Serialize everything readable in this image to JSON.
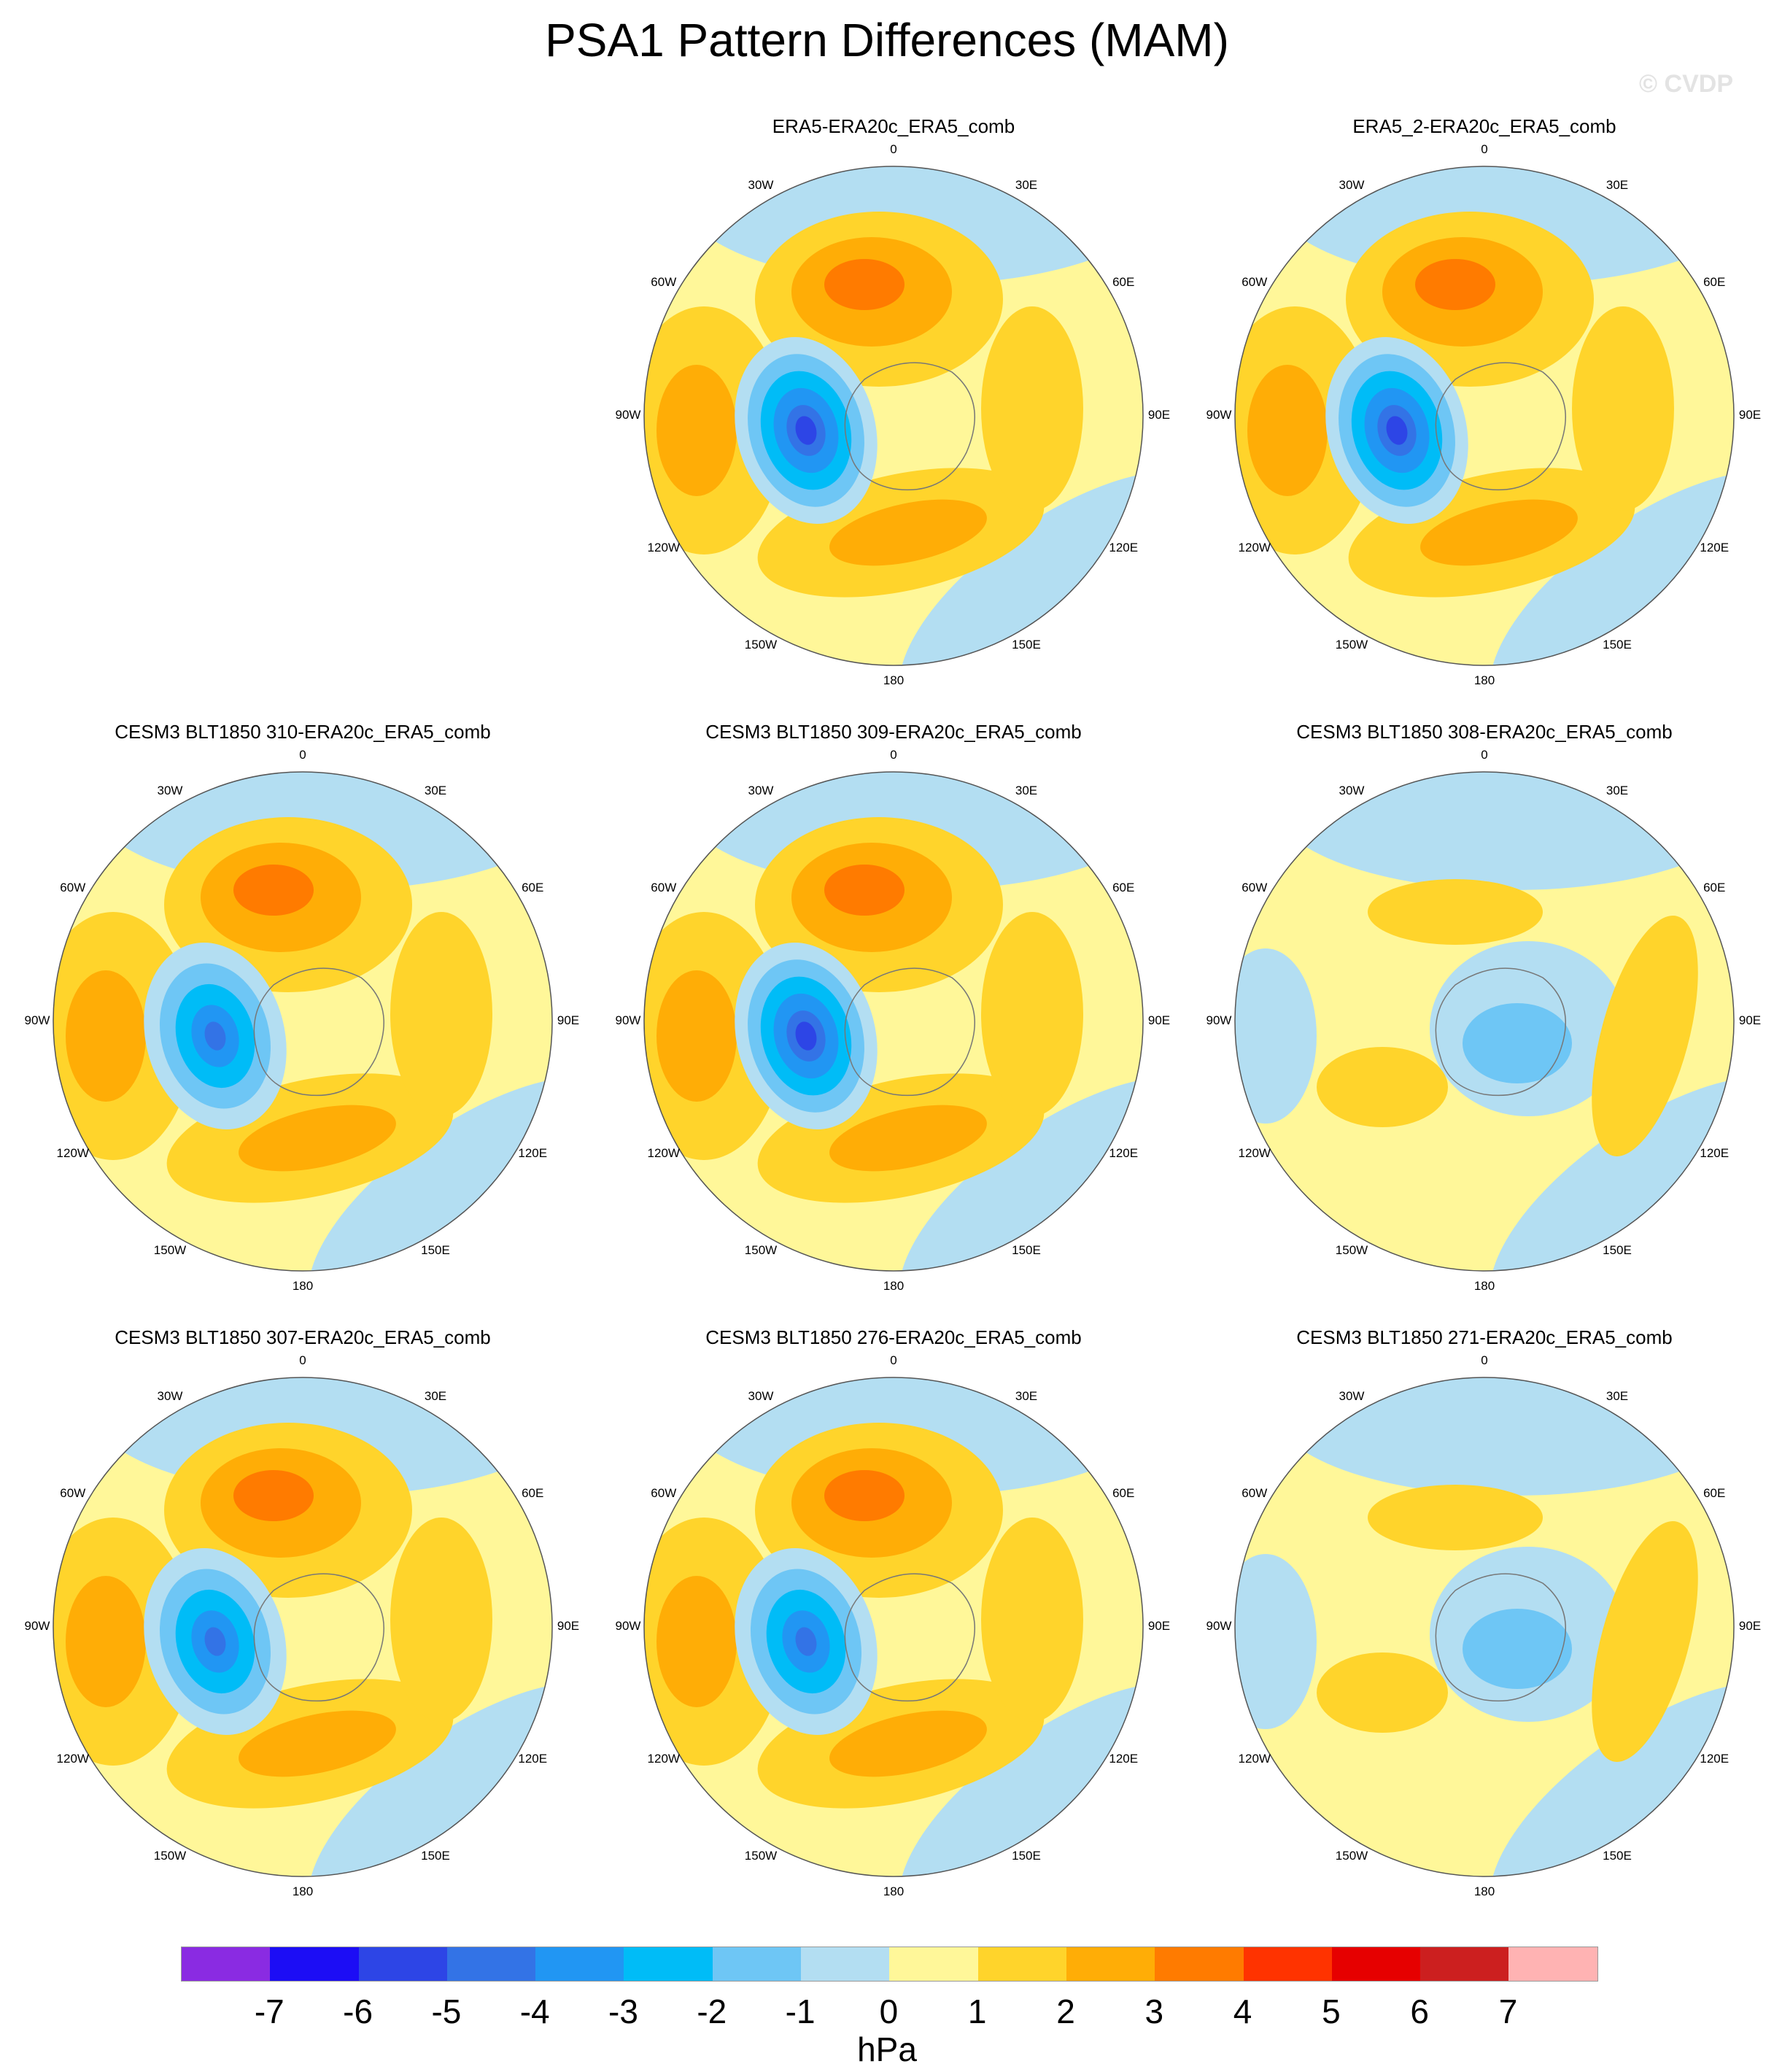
{
  "title": "PSA1 Pattern Differences (MAM)",
  "watermark": "© CVDP",
  "units": "hPa",
  "lon_labels": [
    "0",
    "30E",
    "60E",
    "90E",
    "120E",
    "150E",
    "180",
    "150W",
    "120W",
    "90W",
    "60W",
    "30W"
  ],
  "colorbar": {
    "ticks": [
      "-7",
      "-6",
      "-5",
      "-4",
      "-3",
      "-2",
      "-1",
      "0",
      "1",
      "2",
      "3",
      "4",
      "5",
      "6",
      "7"
    ],
    "colors": [
      "#8a2be2",
      "#1c0df5",
      "#2d45e6",
      "#3373e6",
      "#2196f3",
      "#00bcf7",
      "#6ec6f5",
      "#b3def2",
      "#fff799",
      "#ffd42b",
      "#ffad06",
      "#ff7b00",
      "#ff3300",
      "#e60000",
      "#cc1f1f",
      "#ffb3b3"
    ]
  },
  "panels": [
    {
      "title": "ERA5-ERA20c_ERA5_comb",
      "row": 0,
      "col": 1,
      "low": -6
    },
    {
      "title": "ERA5_2-ERA20c_ERA5_comb",
      "row": 0,
      "col": 2,
      "low": -6
    },
    {
      "title": "CESM3 BLT1850 310-ERA20c_ERA5_comb",
      "row": 1,
      "col": 0,
      "low": -5
    },
    {
      "title": "CESM3 BLT1850 309-ERA20c_ERA5_comb",
      "row": 1,
      "col": 1,
      "low": -6
    },
    {
      "title": "CESM3 BLT1850 308-ERA20c_ERA5_comb",
      "row": 1,
      "col": 2,
      "low": -1
    },
    {
      "title": "CESM3 BLT1850 307-ERA20c_ERA5_comb",
      "row": 2,
      "col": 0,
      "low": -5
    },
    {
      "title": "CESM3 BLT1850 276-ERA20c_ERA5_comb",
      "row": 2,
      "col": 1,
      "low": -5
    },
    {
      "title": "CESM3 BLT1850 271-ERA20c_ERA5_comb",
      "row": 2,
      "col": 2,
      "low": -1
    }
  ]
}
